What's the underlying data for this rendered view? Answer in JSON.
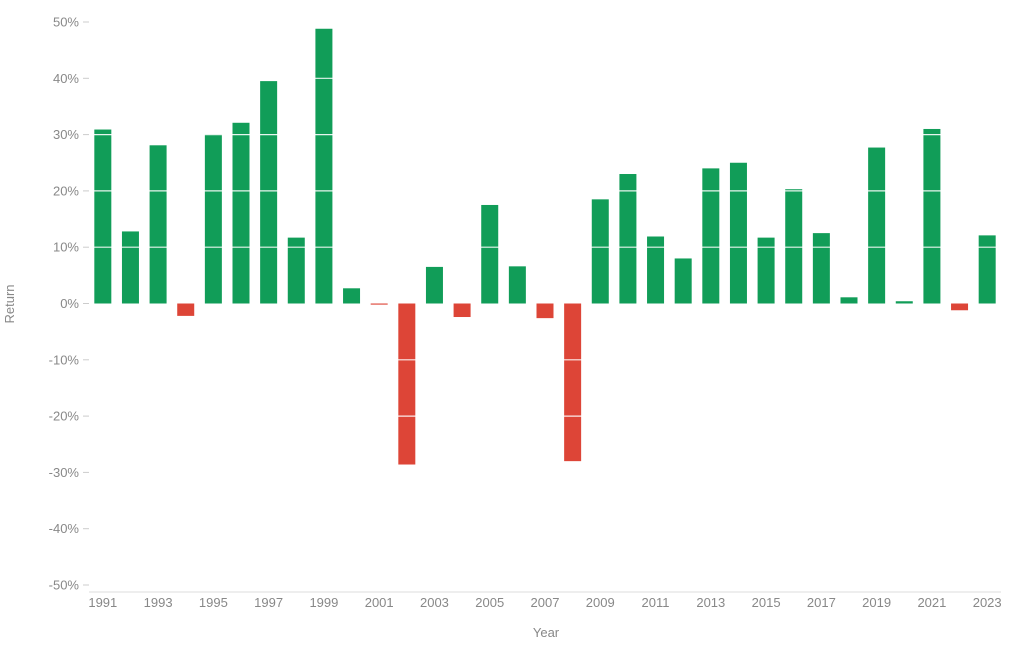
{
  "chart_data": {
    "type": "bar",
    "title": "",
    "xlabel": "Year",
    "ylabel": "Return",
    "ylim": [
      -50,
      50
    ],
    "yticks": [
      50,
      40,
      30,
      20,
      10,
      0,
      -10,
      -20,
      -30,
      -40,
      -50
    ],
    "ytick_format": "%",
    "grid": true,
    "legend": "none",
    "colors": {
      "positive": "#119d58",
      "negative": "#dd4537"
    },
    "categories": [
      "1991",
      "1992",
      "1993",
      "1994",
      "1995",
      "1996",
      "1997",
      "1998",
      "1999",
      "2000",
      "2001",
      "2002",
      "2003",
      "2004",
      "2005",
      "2006",
      "2007",
      "2008",
      "2009",
      "2010",
      "2011",
      "2012",
      "2013",
      "2014",
      "2015",
      "2016",
      "2017",
      "2018",
      "2019",
      "2020",
      "2021",
      "2022",
      "2023"
    ],
    "xtick_labels": [
      "1991",
      "1993",
      "1995",
      "1997",
      "1999",
      "2001",
      "2003",
      "2005",
      "2007",
      "2009",
      "2011",
      "2013",
      "2015",
      "2017",
      "2019",
      "2021",
      "2023"
    ],
    "values": [
      30.9,
      12.8,
      28.1,
      -2.2,
      30.1,
      32.1,
      39.5,
      11.7,
      48.8,
      2.7,
      -0.2,
      -28.6,
      6.5,
      -2.4,
      17.5,
      6.6,
      -2.6,
      -28.0,
      18.5,
      23.0,
      11.9,
      8.0,
      24.0,
      25.0,
      11.7,
      20.3,
      12.5,
      1.1,
      27.7,
      0.4,
      31.0,
      -1.2,
      12.1
    ]
  }
}
